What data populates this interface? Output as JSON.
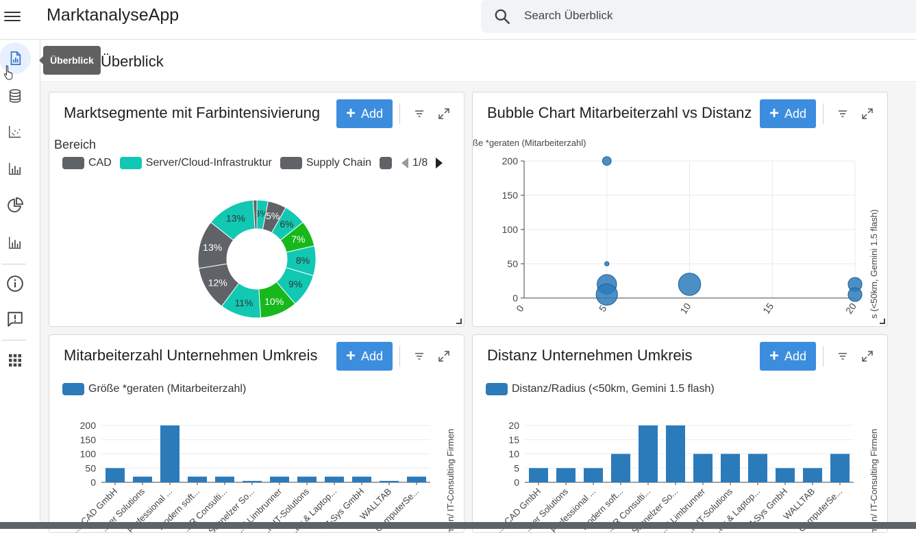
{
  "app": {
    "title": "MarktanalyseApp"
  },
  "search": {
    "placeholder": "Search Überblick"
  },
  "page": {
    "title": "Überblick"
  },
  "tooltip": {
    "text": "Überblick"
  },
  "sidebar": {
    "items": [
      {
        "name": "report-icon",
        "active": true
      },
      {
        "name": "database-icon"
      },
      {
        "name": "scatter-chart-icon"
      },
      {
        "name": "bar-chart-icon"
      },
      {
        "name": "pie-chart-icon"
      },
      {
        "name": "bar-chart-icon-2"
      },
      {
        "name": "info-icon"
      },
      {
        "name": "feedback-icon"
      },
      {
        "name": "apps-grid-icon"
      }
    ]
  },
  "colors": {
    "accent": "#3c8dde",
    "bar": "#2b7bbb",
    "teal": "#11c8b3",
    "green": "#17b81c",
    "gray": "#5f6368"
  },
  "cards": {
    "donut": {
      "title": "Marktsegmente mit Farbintensivierung",
      "add_label": "Add",
      "legend_title": "Bereich",
      "legend": [
        {
          "label": "CAD",
          "color": "#5f6368"
        },
        {
          "label": "Server/Cloud-Infrastruktur",
          "color": "#11c8b3"
        },
        {
          "label": "Supply Chain",
          "color": "#5f6368"
        }
      ],
      "pager": "1/8"
    },
    "bubble": {
      "title": "Bubble Chart Mitarbeiterzahl vs Distanz",
      "add_label": "Add",
      "y_axis_label": "ße *geraten (Mitarbeiterzahl)",
      "right_axis_label": "s (<50km, Gemini 1.5 flash)"
    },
    "bar1": {
      "title": "Mitarbeiterzahl Unternehmen Umkreis",
      "add_label": "Add",
      "legend": "Größe *geraten (Mitarbeiterzahl)",
      "right_axis_label": "men/ IT-Consulting Firmen"
    },
    "bar2": {
      "title": "Distanz Unternehmen Umkreis",
      "add_label": "Add",
      "legend": "Distanz/Radius (<50km, Gemini 1.5 flash)",
      "right_axis_label": "men/ IT-Consulting Firmen"
    }
  },
  "chart_data": [
    {
      "type": "pie",
      "variant": "donut",
      "title": "Marktsegmente mit Farbintensivierung",
      "legend_title": "Bereich",
      "slices": [
        {
          "label": "3%",
          "value": 3,
          "color": "#11c8b3"
        },
        {
          "label": "5%",
          "value": 5,
          "color": "#5f6368"
        },
        {
          "label": "6%",
          "value": 6,
          "color": "#11c8b3"
        },
        {
          "label": "7%",
          "value": 7,
          "color": "#17b81c"
        },
        {
          "label": "8%",
          "value": 8,
          "color": "#11c8b3"
        },
        {
          "label": "9%",
          "value": 9,
          "color": "#11c8b3"
        },
        {
          "label": "10%",
          "value": 10,
          "color": "#17b81c"
        },
        {
          "label": "11%",
          "value": 11,
          "color": "#11c8b3"
        },
        {
          "label": "12%",
          "value": 12,
          "color": "#5f6368"
        },
        {
          "label": "13%",
          "value": 13,
          "color": "#5f6368"
        },
        {
          "label": "13%",
          "value": 13,
          "color": "#11c8b3"
        },
        {
          "label": "",
          "value": 1,
          "color": "#5f6368"
        }
      ]
    },
    {
      "type": "scatter",
      "variant": "bubble",
      "title": "Bubble Chart Mitarbeiterzahl vs Distanz",
      "ylabel": "ße *geraten (Mitarbeiterzahl)",
      "xlim": [
        0,
        20
      ],
      "ylim": [
        0,
        200
      ],
      "xticks": [
        0,
        5,
        10,
        15,
        20
      ],
      "yticks": [
        0,
        50,
        100,
        150,
        200
      ],
      "grid": true,
      "points": [
        {
          "x": 5,
          "y": 200,
          "size": 200
        },
        {
          "x": 5,
          "y": 50,
          "size": 50
        },
        {
          "x": 5,
          "y": 20,
          "size": 1000
        },
        {
          "x": 5,
          "y": 5,
          "size": 1200
        },
        {
          "x": 10,
          "y": 20,
          "size": 1300
        },
        {
          "x": 20,
          "y": 20,
          "size": 500
        },
        {
          "x": 20,
          "y": 5,
          "size": 500
        }
      ]
    },
    {
      "type": "bar",
      "title": "Mitarbeiterzahl Unternehmen Umkreis",
      "series_name": "Größe *geraten (Mitarbeiterzahl)",
      "categories": [
        "...it CAD GmbH",
        "...ner Solutions",
        "Professional ...",
        "modern soft...",
        "...ER Consulti...",
        "Schnelzer So...",
        "...V Limbrunner",
        "...H IT-Solutions",
        "...ter & Laptop...",
        "M-Sys GmbH",
        "WALLTAB",
        "ComputerSe..."
      ],
      "values": [
        50,
        20,
        200,
        20,
        20,
        5,
        20,
        20,
        20,
        20,
        5,
        20
      ],
      "ylim": [
        0,
        200
      ],
      "yticks": [
        0,
        50,
        100,
        150,
        200
      ]
    },
    {
      "type": "bar",
      "title": "Distanz Unternehmen Umkreis",
      "series_name": "Distanz/Radius (<50km, Gemini 1.5 flash)",
      "categories": [
        "...it CAD GmbH",
        "...ner Solutions",
        "Professional ...",
        "modern soft...",
        "...ER Consulti...",
        "Schnelzer So...",
        "...V Limbrunner",
        "...H IT-Solutions",
        "...ter & Laptop...",
        "M-Sys GmbH",
        "WALLTAB",
        "ComputerSe..."
      ],
      "values": [
        5,
        5,
        5,
        10,
        20,
        20,
        10,
        10,
        10,
        5,
        5,
        10
      ],
      "ylim": [
        0,
        20
      ],
      "yticks": [
        0,
        5,
        10,
        15,
        20
      ]
    }
  ]
}
